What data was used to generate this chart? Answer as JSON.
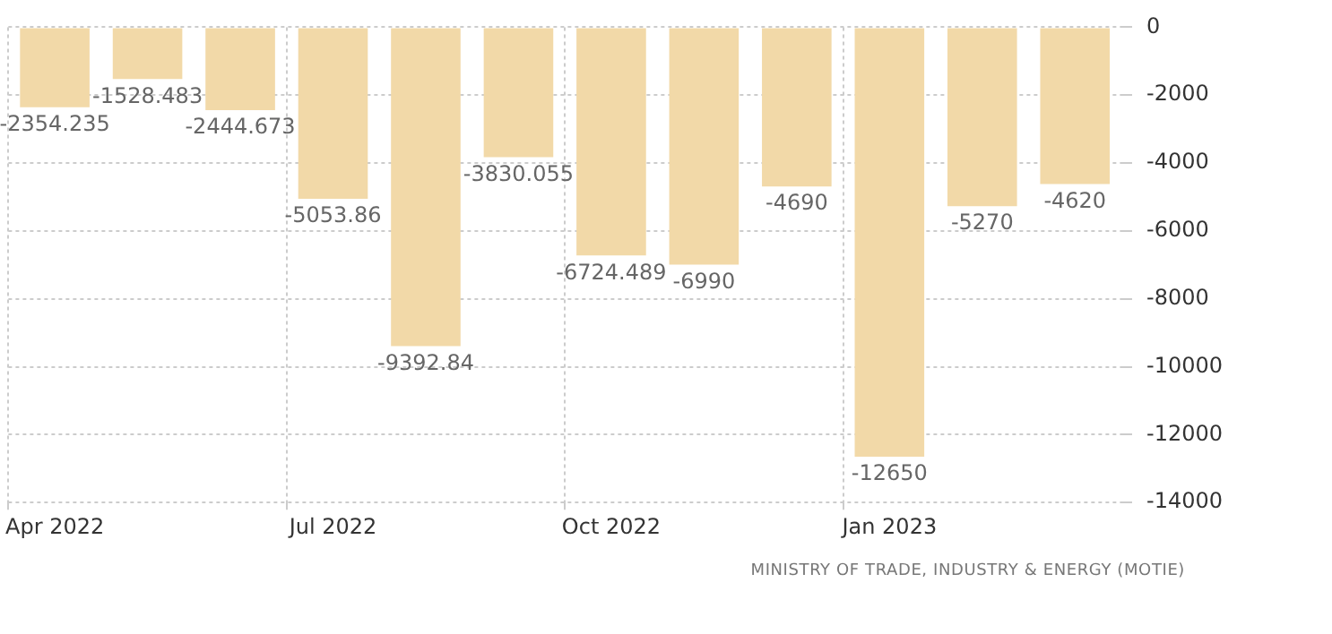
{
  "chart_data": {
    "type": "bar",
    "categories": [
      "Apr 2022",
      null,
      null,
      "Jul 2022",
      null,
      null,
      "Oct 2022",
      null,
      null,
      "Jan 2023",
      null,
      null
    ],
    "values": [
      -2354.235,
      -1528.483,
      -2444.673,
      -5053.86,
      -9392.84,
      -3830.055,
      -6724.489,
      -6990,
      -4690,
      -12650,
      -5270,
      -4620
    ],
    "color": "#f2d9a8",
    "ylim": [
      -14000,
      0
    ],
    "yticks": [
      0,
      -2000,
      -4000,
      -6000,
      -8000,
      -10000,
      -12000,
      -14000
    ],
    "grid": true,
    "data_labels": true,
    "annotations": [
      "MINISTRY OF TRADE, INDUSTRY & ENERGY (MOTIE)"
    ]
  }
}
